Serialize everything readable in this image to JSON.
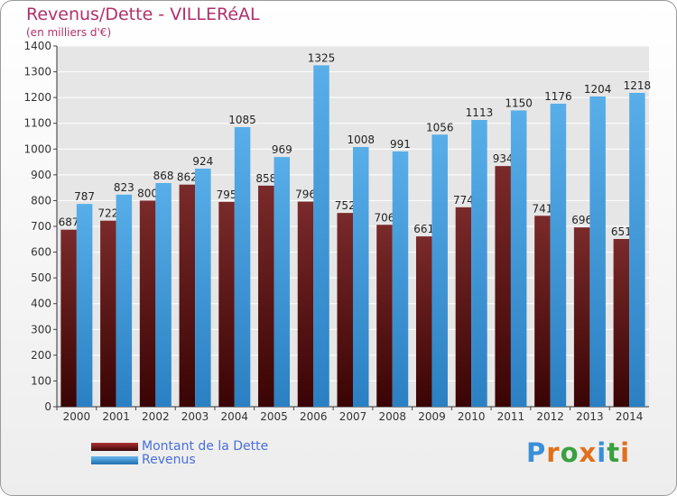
{
  "chart_data": {
    "type": "bar",
    "title": "Revenus/Dette - VILLERéAL",
    "subtitle": "(en milliers d'€)",
    "categories": [
      "2000",
      "2001",
      "2002",
      "2003",
      "2004",
      "2005",
      "2006",
      "2007",
      "2008",
      "2009",
      "2010",
      "2011",
      "2012",
      "2013",
      "2014"
    ],
    "series": [
      {
        "name": "Montant de la Dette",
        "color": "#7a2020",
        "values": [
          687,
          722,
          800,
          862,
          795,
          858,
          796,
          752,
          706,
          661,
          774,
          934,
          741,
          696,
          651
        ]
      },
      {
        "name": "Revenus",
        "color": "#3a97d9",
        "values": [
          787,
          823,
          868,
          924,
          1085,
          969,
          1325,
          1008,
          991,
          1056,
          1113,
          1150,
          1176,
          1204,
          1218
        ]
      }
    ],
    "ylim": [
      0,
      1400
    ],
    "ytick_step": 100,
    "grid": true,
    "legend_position": "bottom-left"
  },
  "brand": {
    "letters": [
      "P",
      "r",
      "o",
      "x",
      "i",
      "t",
      "i"
    ],
    "colors": [
      "#3a8fd6",
      "#e0701a",
      "#3aa040",
      "#e0701a",
      "#3a8fd6",
      "#3aa040",
      "#e0701a"
    ]
  }
}
